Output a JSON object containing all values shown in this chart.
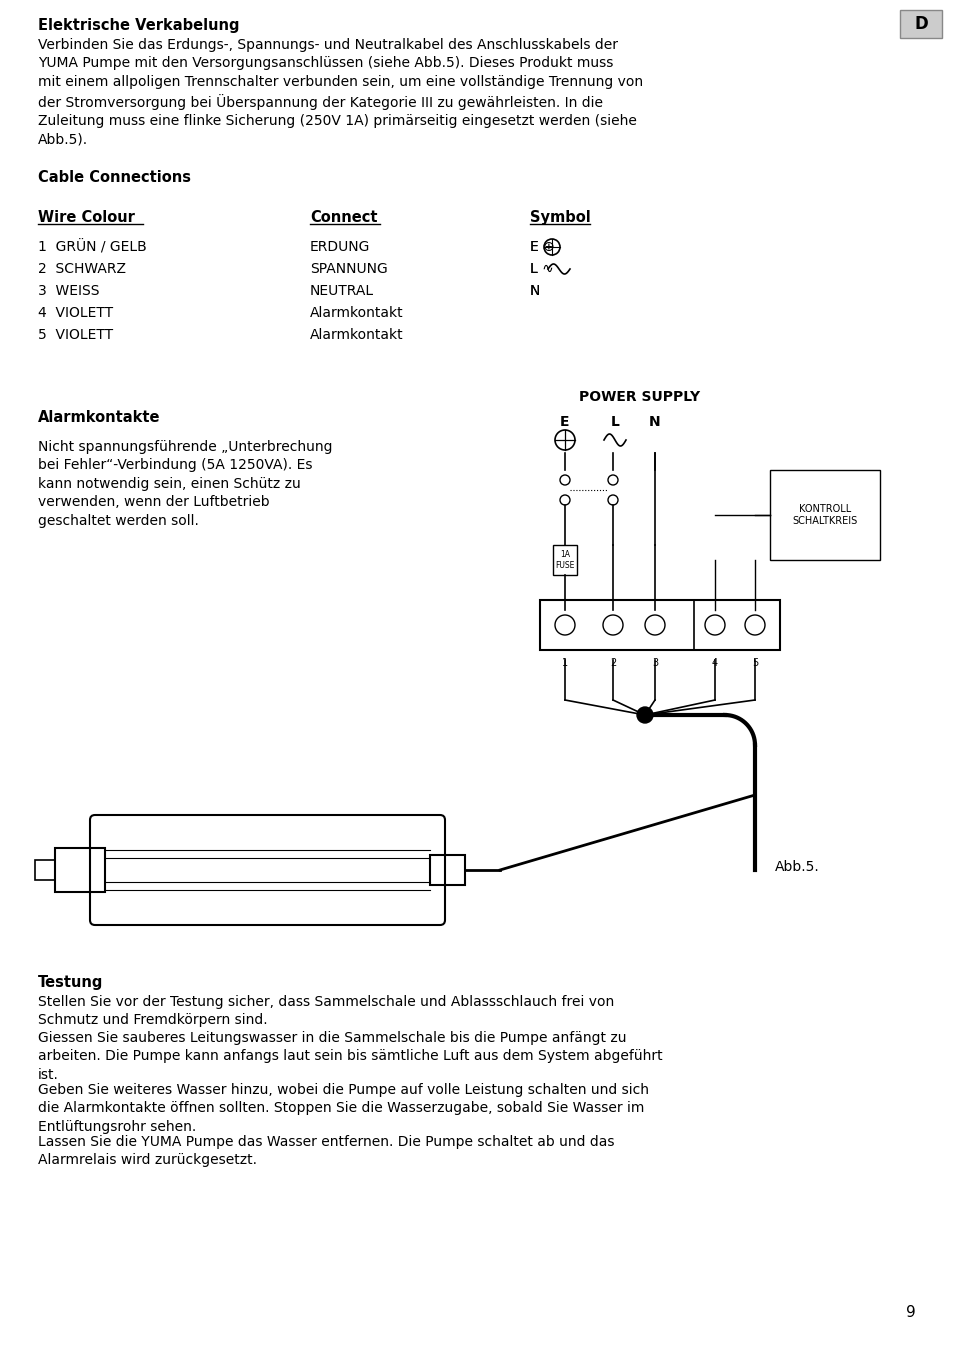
{
  "bg_color": "#ffffff",
  "text_color": "#000000",
  "title1": "Elektrische Verkabelung",
  "para1": "Verbinden Sie das Erdungs-, Spannungs- und Neutralkabel des Anschlusskabels der\nYUMA Pumpe mit den Versorgungsanschlüssen (siehe Abb.5). Dieses Produkt muss\nmit einem allpoligen Trennschalter verbunden sein, um eine vollständige Trennung von\nder Stromversorgung bei Überspannung der Kategorie III zu gewährleisten. In die\nZuleitung muss eine flinke Sicherung (250V 1A) primärseitig eingesetzt werden (siehe\nAbb.5).",
  "title2": "Cable Connections",
  "col1_header": "Wire Colour",
  "col2_header": "Connect",
  "col3_header": "Symbol",
  "wire_rows": [
    [
      "1  GRÜN / GELB",
      "ERDUNG",
      "E ⊕"
    ],
    [
      "2  SCHWARZ",
      "SPANNUNG",
      "L ∿"
    ],
    [
      "3  WEISS",
      "NEUTRAL",
      "N"
    ],
    [
      "4  VIOLETT",
      "Alarmkontakt",
      ""
    ],
    [
      "5  VIOLETT",
      "Alarmkontakt",
      ""
    ]
  ],
  "power_supply_label": "POWER SUPPLY",
  "e_label": "E",
  "l_label": "L",
  "n_label": "N",
  "kontroll_label": "KONTROLL\nSCHALTKREIS",
  "fuse_label": "1A\nFUSE",
  "abb_label": "Abb.5.",
  "section3_title": "Alarmkontakte",
  "section3_para": "Nicht spannungsführende „Unterbrechung\nbei Fehler“-Verbindung (5A 1250VA). Es\nkann notwendig sein, einen Schütz zu\nverwenden, wenn der Luftbetrieb\ngeschaltet werden soll.",
  "section4_title": "Testung",
  "section4_para1": "Stellen Sie vor der Testung sicher, dass Sammelschale und Ablassschlauch frei von\nSchmutz und Fremdkörpern sind.",
  "section4_para2": "Giessen Sie sauberes Leitungswasser in die Sammelschale bis die Pumpe anfängt zu\narbeiten. Die Pumpe kann anfangs laut sein bis sämtliche Luft aus dem System abgeführt\nist.",
  "section4_para3": "Geben Sie weiteres Wasser hinzu, wobei die Pumpe auf volle Leistung schalten und sich\ndie Alarmkontakte öffnen sollten. Stoppen Sie die Wasserzugabe, sobald Sie Wasser im\nEntlüftungsrohr sehen.",
  "section4_para4": "Lassen Sie die YUMA Pumpe das Wasser entfernen. Die Pumpe schaltet ab und das\nAlarmrelais wird zurückgesetzt.",
  "page_number": "9",
  "d_label": "D"
}
